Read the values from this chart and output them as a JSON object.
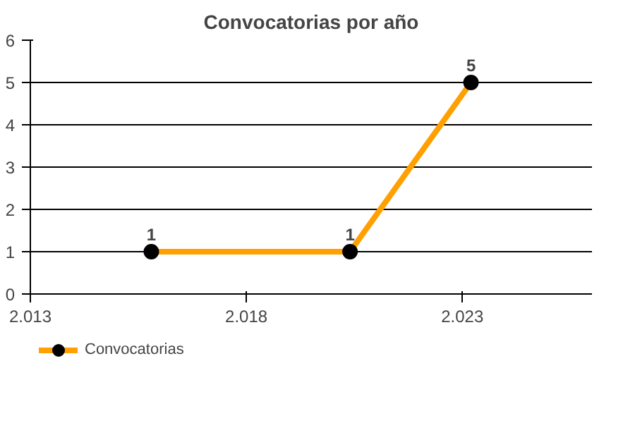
{
  "chart_data": {
    "type": "line",
    "title": "Convocatorias por año",
    "x": [
      2015.8,
      2020.4,
      2023.2
    ],
    "series": [
      {
        "name": "Convocatorias",
        "color": "#ffa000",
        "values": [
          1,
          1,
          5
        ]
      }
    ],
    "xlim": [
      2013,
      2026
    ],
    "xticks": [
      {
        "value": 2013,
        "label": "2.013"
      },
      {
        "value": 2018,
        "label": "2.018"
      },
      {
        "value": 2023,
        "label": "2.023"
      }
    ],
    "ylim": [
      0,
      6
    ],
    "yticks": [
      0,
      1,
      2,
      3,
      4,
      5,
      6
    ],
    "grid": "y",
    "legend": "bottom left",
    "marker": "circle",
    "data_labels": true
  }
}
